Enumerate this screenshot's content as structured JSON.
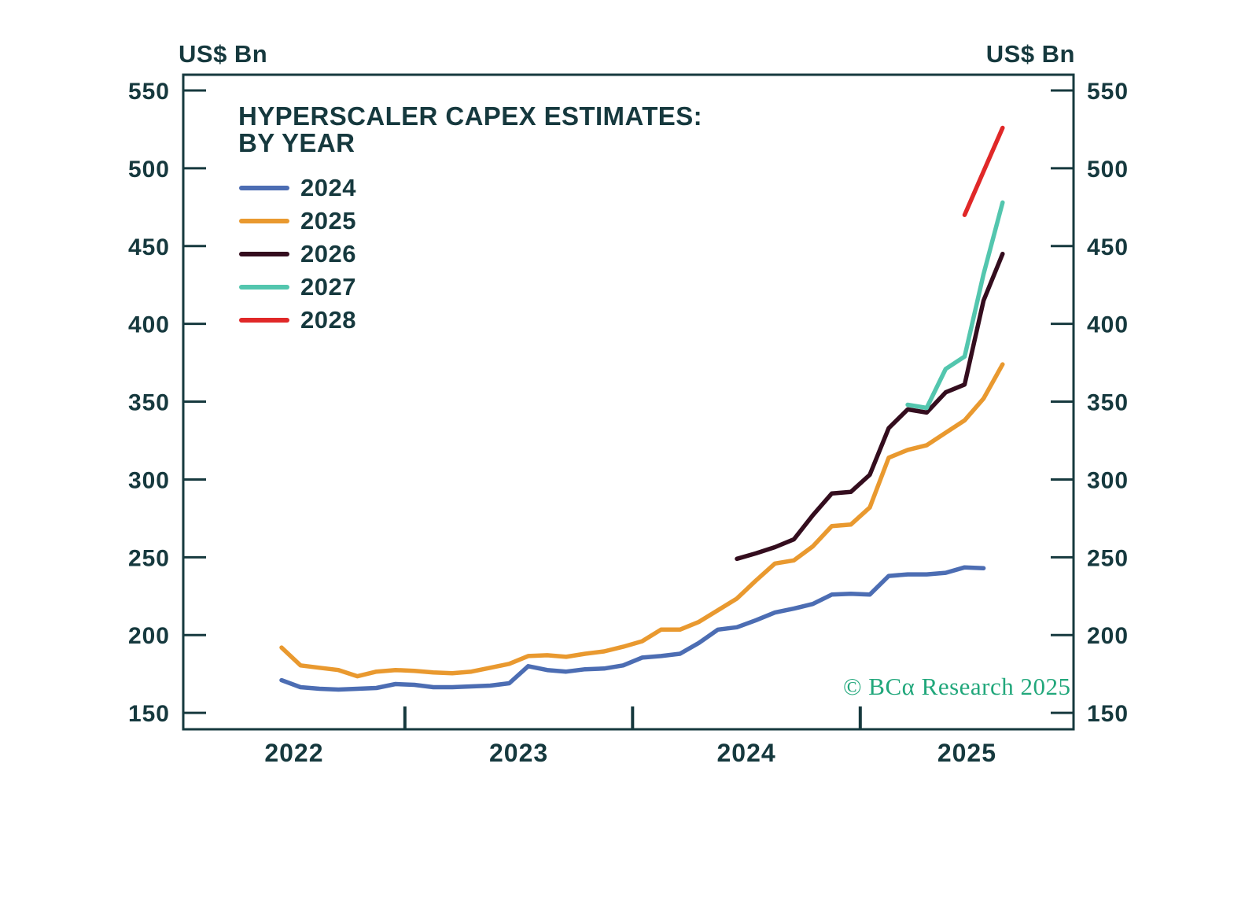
{
  "chart_data": {
    "type": "line",
    "title_line1": "HYPERSCALER CAPEX ESTIMATES:",
    "title_line2": "BY YEAR",
    "ylabel_left": "US$ Bn",
    "ylabel_right": "US$ Bn",
    "watermark": "© BCα Research 2025",
    "grid": false,
    "legend_position": "top-left-inside",
    "axis_color": "#16393E",
    "background": "#FFFFFF",
    "ylim": [
      150,
      550
    ],
    "yticks": [
      550,
      500,
      450,
      400,
      350,
      300,
      250,
      200,
      150
    ],
    "xticks": [
      "2022",
      "2023",
      "2024",
      "2025"
    ],
    "x_months": [
      "2022-06",
      "2022-07",
      "2022-08",
      "2022-09",
      "2022-10",
      "2022-11",
      "2022-12",
      "2023-01",
      "2023-02",
      "2023-03",
      "2023-04",
      "2023-05",
      "2023-06",
      "2023-07",
      "2023-08",
      "2023-09",
      "2023-10",
      "2023-11",
      "2023-12",
      "2024-01",
      "2024-02",
      "2024-03",
      "2024-04",
      "2024-05",
      "2024-06",
      "2024-07",
      "2024-08",
      "2024-09",
      "2024-10",
      "2024-11",
      "2024-12",
      "2025-01",
      "2025-02",
      "2025-03",
      "2025-04",
      "2025-05",
      "2025-06",
      "2025-07",
      "2025-08"
    ],
    "series": [
      {
        "name": "2024",
        "color": "#4C6DB3",
        "values": [
          171,
          166.5,
          165.5,
          165,
          165.5,
          166,
          168.5,
          168,
          166.5,
          166.5,
          167,
          167.5,
          169,
          180,
          177.5,
          176.5,
          178,
          178.5,
          180.5,
          185.5,
          186.5,
          188,
          195,
          203.5,
          205,
          209.5,
          214.5,
          217,
          220,
          226,
          226.5,
          226,
          238,
          239,
          239,
          240,
          243.5,
          243,
          null
        ]
      },
      {
        "name": "2025",
        "color": "#E9992F",
        "values": [
          192,
          180.5,
          179,
          177.5,
          173.5,
          176.5,
          177.5,
          177,
          176,
          175.5,
          176.5,
          179,
          181.5,
          186.5,
          187,
          186,
          188,
          189.5,
          192.5,
          196,
          203.5,
          203.5,
          208.5,
          216,
          223.5,
          235,
          246,
          248,
          257,
          270,
          271,
          282,
          314,
          319,
          322,
          330,
          338,
          352,
          374
        ]
      },
      {
        "name": "2026",
        "color": "#340D1E",
        "values": [
          null,
          null,
          null,
          null,
          null,
          null,
          null,
          null,
          null,
          null,
          null,
          null,
          null,
          null,
          null,
          null,
          null,
          null,
          null,
          null,
          null,
          null,
          null,
          null,
          249,
          252.5,
          256.5,
          261.5,
          277,
          291,
          292,
          303,
          333,
          345,
          343,
          356,
          361,
          415,
          445
        ]
      },
      {
        "name": "2027",
        "color": "#53C6AE",
        "values": [
          null,
          null,
          null,
          null,
          null,
          null,
          null,
          null,
          null,
          null,
          null,
          null,
          null,
          null,
          null,
          null,
          null,
          null,
          null,
          null,
          null,
          null,
          null,
          null,
          null,
          null,
          null,
          null,
          null,
          null,
          null,
          null,
          null,
          348,
          346,
          371,
          379,
          432,
          478
        ]
      },
      {
        "name": "2028",
        "color": "#E02828",
        "values": [
          null,
          null,
          null,
          null,
          null,
          null,
          null,
          null,
          null,
          null,
          null,
          null,
          null,
          null,
          null,
          null,
          null,
          null,
          null,
          null,
          null,
          null,
          null,
          null,
          null,
          null,
          null,
          null,
          null,
          null,
          null,
          null,
          null,
          null,
          null,
          null,
          470,
          498,
          526
        ]
      }
    ]
  }
}
